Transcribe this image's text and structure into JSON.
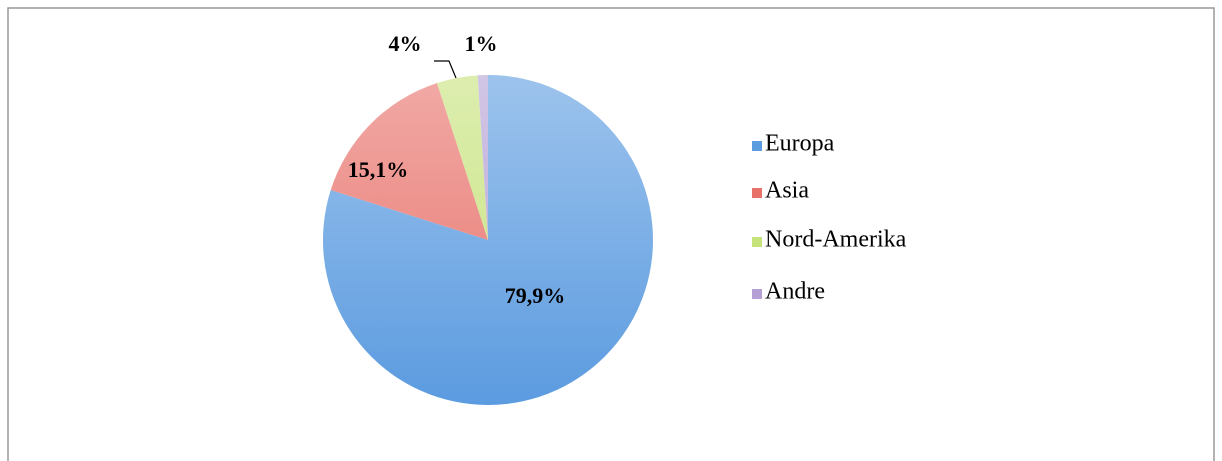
{
  "chart_data": {
    "type": "pie",
    "categories": [
      "Europa",
      "Asia",
      "Nord-Amerika",
      "Andre"
    ],
    "values": [
      79.9,
      15.1,
      4,
      1
    ],
    "value_labels": [
      "79,9%",
      "15,1%",
      "4%",
      "1%"
    ],
    "colors": [
      "#5b9be0",
      "#e8716a",
      "#c6e27a",
      "#b4a0d4"
    ],
    "legend": "right"
  }
}
